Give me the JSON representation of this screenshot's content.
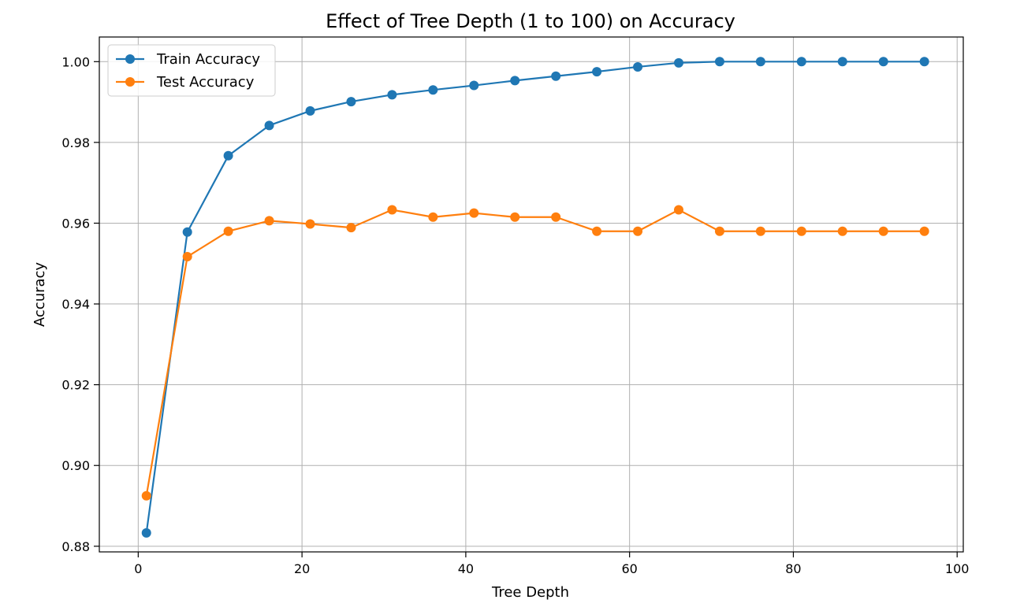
{
  "chart_data": {
    "type": "line",
    "title": "Effect of Tree Depth (1 to 100) on Accuracy",
    "xlabel": "Tree Depth",
    "ylabel": "Accuracy",
    "xlim": [
      -4.75,
      100.75
    ],
    "ylim": [
      0.8786,
      1.0061
    ],
    "xticks": [
      0,
      20,
      40,
      60,
      80,
      100
    ],
    "yticks": [
      0.88,
      0.9,
      0.92,
      0.94,
      0.96,
      0.98,
      1.0
    ],
    "xtick_labels": [
      "0",
      "20",
      "40",
      "60",
      "80",
      "100"
    ],
    "ytick_labels": [
      "0.88",
      "0.90",
      "0.92",
      "0.94",
      "0.96",
      "0.98",
      "1.00"
    ],
    "grid": true,
    "legend_position": "top-left",
    "x": [
      1,
      6,
      11,
      16,
      21,
      26,
      31,
      36,
      41,
      46,
      51,
      56,
      61,
      66,
      71,
      76,
      81,
      86,
      91,
      96
    ],
    "series": [
      {
        "name": "Train Accuracy",
        "color": "#1f77b4",
        "values": [
          0.8833,
          0.9578,
          0.9767,
          0.9842,
          0.9878,
          0.9901,
          0.9918,
          0.993,
          0.9941,
          0.9953,
          0.9964,
          0.9975,
          0.9987,
          0.9997,
          1.0,
          1.0,
          1.0,
          1.0,
          1.0,
          1.0
        ]
      },
      {
        "name": "Test Accuracy",
        "color": "#ff7f0e",
        "values": [
          0.8925,
          0.9517,
          0.958,
          0.9606,
          0.9598,
          0.9589,
          0.9633,
          0.9615,
          0.9625,
          0.9615,
          0.9615,
          0.958,
          0.958,
          0.9633,
          0.958,
          0.958,
          0.958,
          0.958,
          0.958,
          0.958
        ]
      }
    ]
  }
}
